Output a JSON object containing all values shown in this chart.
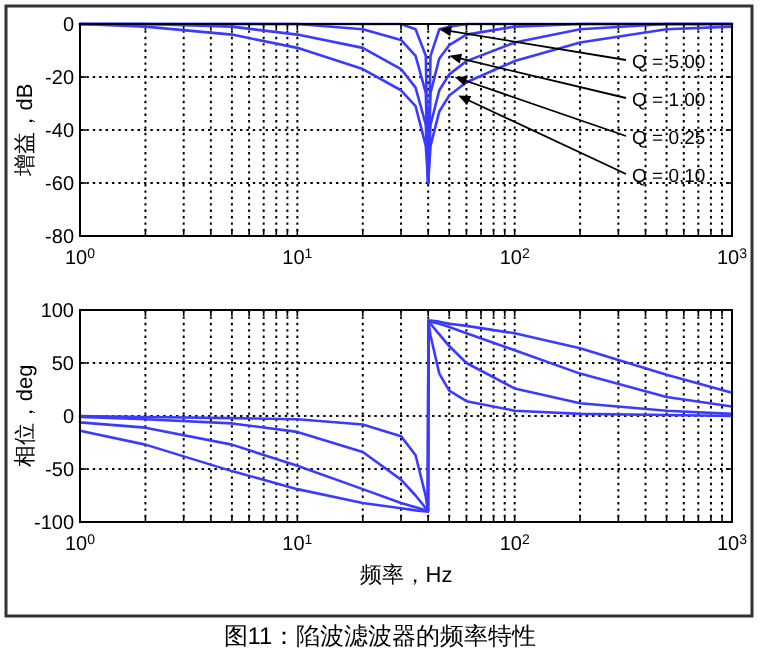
{
  "chart_data": [
    {
      "type": "line",
      "ylabel": "增益，dB",
      "log": "x",
      "xlim": [
        1,
        1000
      ],
      "ylim": [
        -80,
        0
      ],
      "yticks": [
        -80,
        -60,
        -40,
        -20,
        0
      ],
      "xticks": [
        {
          "value": 1,
          "label": "10$^{0}$"
        },
        {
          "value": 2,
          "label": null
        },
        {
          "value": 3,
          "label": null
        },
        {
          "value": 4,
          "label": null
        },
        {
          "value": 5,
          "label": null
        },
        {
          "value": 6,
          "label": null
        },
        {
          "value": 7,
          "label": null
        },
        {
          "value": 8,
          "label": null
        },
        {
          "value": 9,
          "label": null
        },
        {
          "value": 10,
          "label": "10$^{1}$"
        },
        {
          "value": 20,
          "label": null
        },
        {
          "value": 30,
          "label": null
        },
        {
          "value": 40,
          "label": null
        },
        {
          "value": 50,
          "label": null
        },
        {
          "value": 60,
          "label": null
        },
        {
          "value": 70,
          "label": null
        },
        {
          "value": 80,
          "label": null
        },
        {
          "value": 90,
          "label": null
        },
        {
          "value": 100,
          "label": "10$^{2}$"
        },
        {
          "value": 200,
          "label": null
        },
        {
          "value": 300,
          "label": null
        },
        {
          "value": 400,
          "label": null
        },
        {
          "value": 500,
          "label": null
        },
        {
          "value": 600,
          "label": null
        },
        {
          "value": 700,
          "label": null
        },
        {
          "value": 800,
          "label": null
        },
        {
          "value": 900,
          "label": null
        },
        {
          "value": 1000,
          "label": "10$^{3}$"
        }
      ],
      "grid": true,
      "x": [
        1,
        2,
        5,
        10,
        20,
        30,
        35,
        39,
        40,
        41,
        45,
        50,
        60,
        100,
        200,
        500,
        1000
      ],
      "series": [
        {
          "color": "#3b3bff",
          "values": [
            0,
            0,
            0,
            0,
            0,
            0,
            -2,
            -12,
            -60,
            -12,
            -2,
            -1,
            0,
            0,
            0,
            0,
            0
          ]
        },
        {
          "color": "#3b3bff",
          "values": [
            0,
            0,
            0,
            0,
            -2,
            -6,
            -12,
            -26,
            -60,
            -26,
            -13,
            -8,
            -4,
            -1,
            0,
            0,
            0
          ]
        },
        {
          "color": "#3b3bff",
          "values": [
            0,
            0,
            -1,
            -4,
            -9,
            -17,
            -24,
            -38,
            -60,
            -38,
            -25,
            -19,
            -14,
            -7,
            -2,
            0,
            0
          ]
        },
        {
          "color": "#3b3bff",
          "values": [
            0,
            -1,
            -4,
            -9,
            -17,
            -25,
            -31,
            -46,
            -60,
            -46,
            -33,
            -27,
            -22,
            -14,
            -7,
            -2,
            -1
          ]
        }
      ],
      "annotations": [
        {
          "text": "Q = 5.00",
          "x": 45,
          "y": -2
        },
        {
          "text": "Q = 1.00",
          "x": 50,
          "y": -12
        },
        {
          "text": "Q = 0.25",
          "x": 53,
          "y": -20
        },
        {
          "text": "Q = 0.10",
          "x": 55,
          "y": -27
        }
      ]
    },
    {
      "type": "line",
      "ylabel": "相位，deg",
      "xlabel": "频率，Hz",
      "log": "x",
      "xlim": [
        1,
        1000
      ],
      "ylim": [
        -100,
        100
      ],
      "yticks": [
        -100,
        -50,
        0,
        50,
        100
      ],
      "xticks": [
        {
          "value": 1,
          "label": "10$^{0}$"
        },
        {
          "value": 2,
          "label": null
        },
        {
          "value": 3,
          "label": null
        },
        {
          "value": 4,
          "label": null
        },
        {
          "value": 5,
          "label": null
        },
        {
          "value": 6,
          "label": null
        },
        {
          "value": 7,
          "label": null
        },
        {
          "value": 8,
          "label": null
        },
        {
          "value": 9,
          "label": null
        },
        {
          "value": 10,
          "label": "10$^{1}$"
        },
        {
          "value": 20,
          "label": null
        },
        {
          "value": 30,
          "label": null
        },
        {
          "value": 40,
          "label": null
        },
        {
          "value": 50,
          "label": null
        },
        {
          "value": 60,
          "label": null
        },
        {
          "value": 70,
          "label": null
        },
        {
          "value": 80,
          "label": null
        },
        {
          "value": 90,
          "label": null
        },
        {
          "value": 100,
          "label": "10$^{2}$"
        },
        {
          "value": 200,
          "label": null
        },
        {
          "value": 300,
          "label": null
        },
        {
          "value": 400,
          "label": null
        },
        {
          "value": 500,
          "label": null
        },
        {
          "value": 600,
          "label": null
        },
        {
          "value": 700,
          "label": null
        },
        {
          "value": 800,
          "label": null
        },
        {
          "value": 900,
          "label": null
        },
        {
          "value": 1000,
          "label": "10$^{3}$"
        }
      ],
      "grid": true,
      "x": [
        1,
        2,
        5,
        10,
        20,
        30,
        35,
        39,
        39.9,
        40.1,
        41,
        45,
        50,
        60,
        100,
        200,
        500,
        1000
      ],
      "series": [
        {
          "color": "#3b3bff",
          "values": [
            0,
            -1,
            -2,
            -3,
            -8,
            -19,
            -37,
            -76,
            -89,
            89,
            76,
            40,
            24,
            14,
            5,
            2,
            1,
            0
          ]
        },
        {
          "color": "#3b3bff",
          "values": [
            -1,
            -3,
            -7,
            -15,
            -34,
            -60,
            -75,
            -87,
            -90,
            90,
            87,
            77,
            66,
            50,
            26,
            12,
            5,
            2
          ]
        },
        {
          "color": "#3b3bff",
          "values": [
            -6,
            -11,
            -27,
            -47,
            -69,
            -82,
            -86,
            -89,
            -90,
            90,
            89,
            87,
            84,
            78,
            62,
            40,
            18,
            9
          ]
        },
        {
          "color": "#3b3bff",
          "values": [
            -14,
            -27,
            -52,
            -69,
            -82,
            -87,
            -89,
            -90,
            -90,
            90,
            90,
            89,
            87,
            85,
            78,
            64,
            39,
            22
          ]
        }
      ],
      "annotations": [
        "图11：陷波滤波器的频率特性"
      ]
    }
  ]
}
